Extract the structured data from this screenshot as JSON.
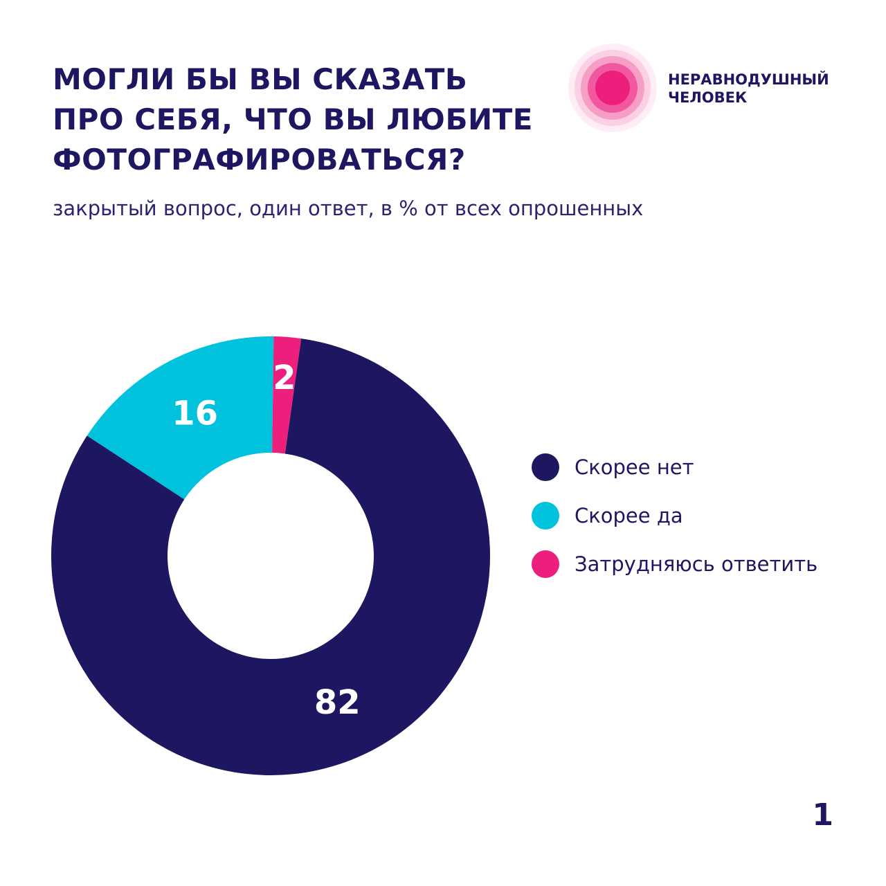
{
  "title": {
    "lines": [
      "МОГЛИ БЫ ВЫ СКАЗАТЬ",
      "ПРО СЕБЯ, ЧТО ВЫ ЛЮБИТЕ",
      "ФОТОГРАФИРОВАТЬСЯ?"
    ]
  },
  "subtitle": "закрытый вопрос, один ответ, в % от всех опрошенных",
  "logo": {
    "line1": "НЕРАВНОДУШНЫЙ",
    "line2": "ЧЕЛОВЕК",
    "icon": "concentric-circles-logo"
  },
  "page_number": "1",
  "colors": {
    "navy": "#1d1660",
    "cyan": "#00c2dc",
    "pink": "#ec1f7d",
    "text": "#1d1660"
  },
  "chart_data": {
    "type": "pie",
    "variant": "donut",
    "title": "МОГЛИ БЫ ВЫ СКАЗАТЬ ПРО СЕБЯ, ЧТО ВЫ ЛЮБИТЕ ФОТОГРАФИРОВАТЬСЯ?",
    "unit": "%",
    "legend_position": "right",
    "slices": [
      {
        "name": "Скорее нет",
        "value": 82,
        "label": "82",
        "color": "#1d1660"
      },
      {
        "name": "Скорее да",
        "value": 16,
        "label": "16",
        "color": "#00c2dc"
      },
      {
        "name": "Затрудняюсь ответить",
        "value": 2,
        "label": "2",
        "color": "#ec1f7d"
      }
    ]
  }
}
